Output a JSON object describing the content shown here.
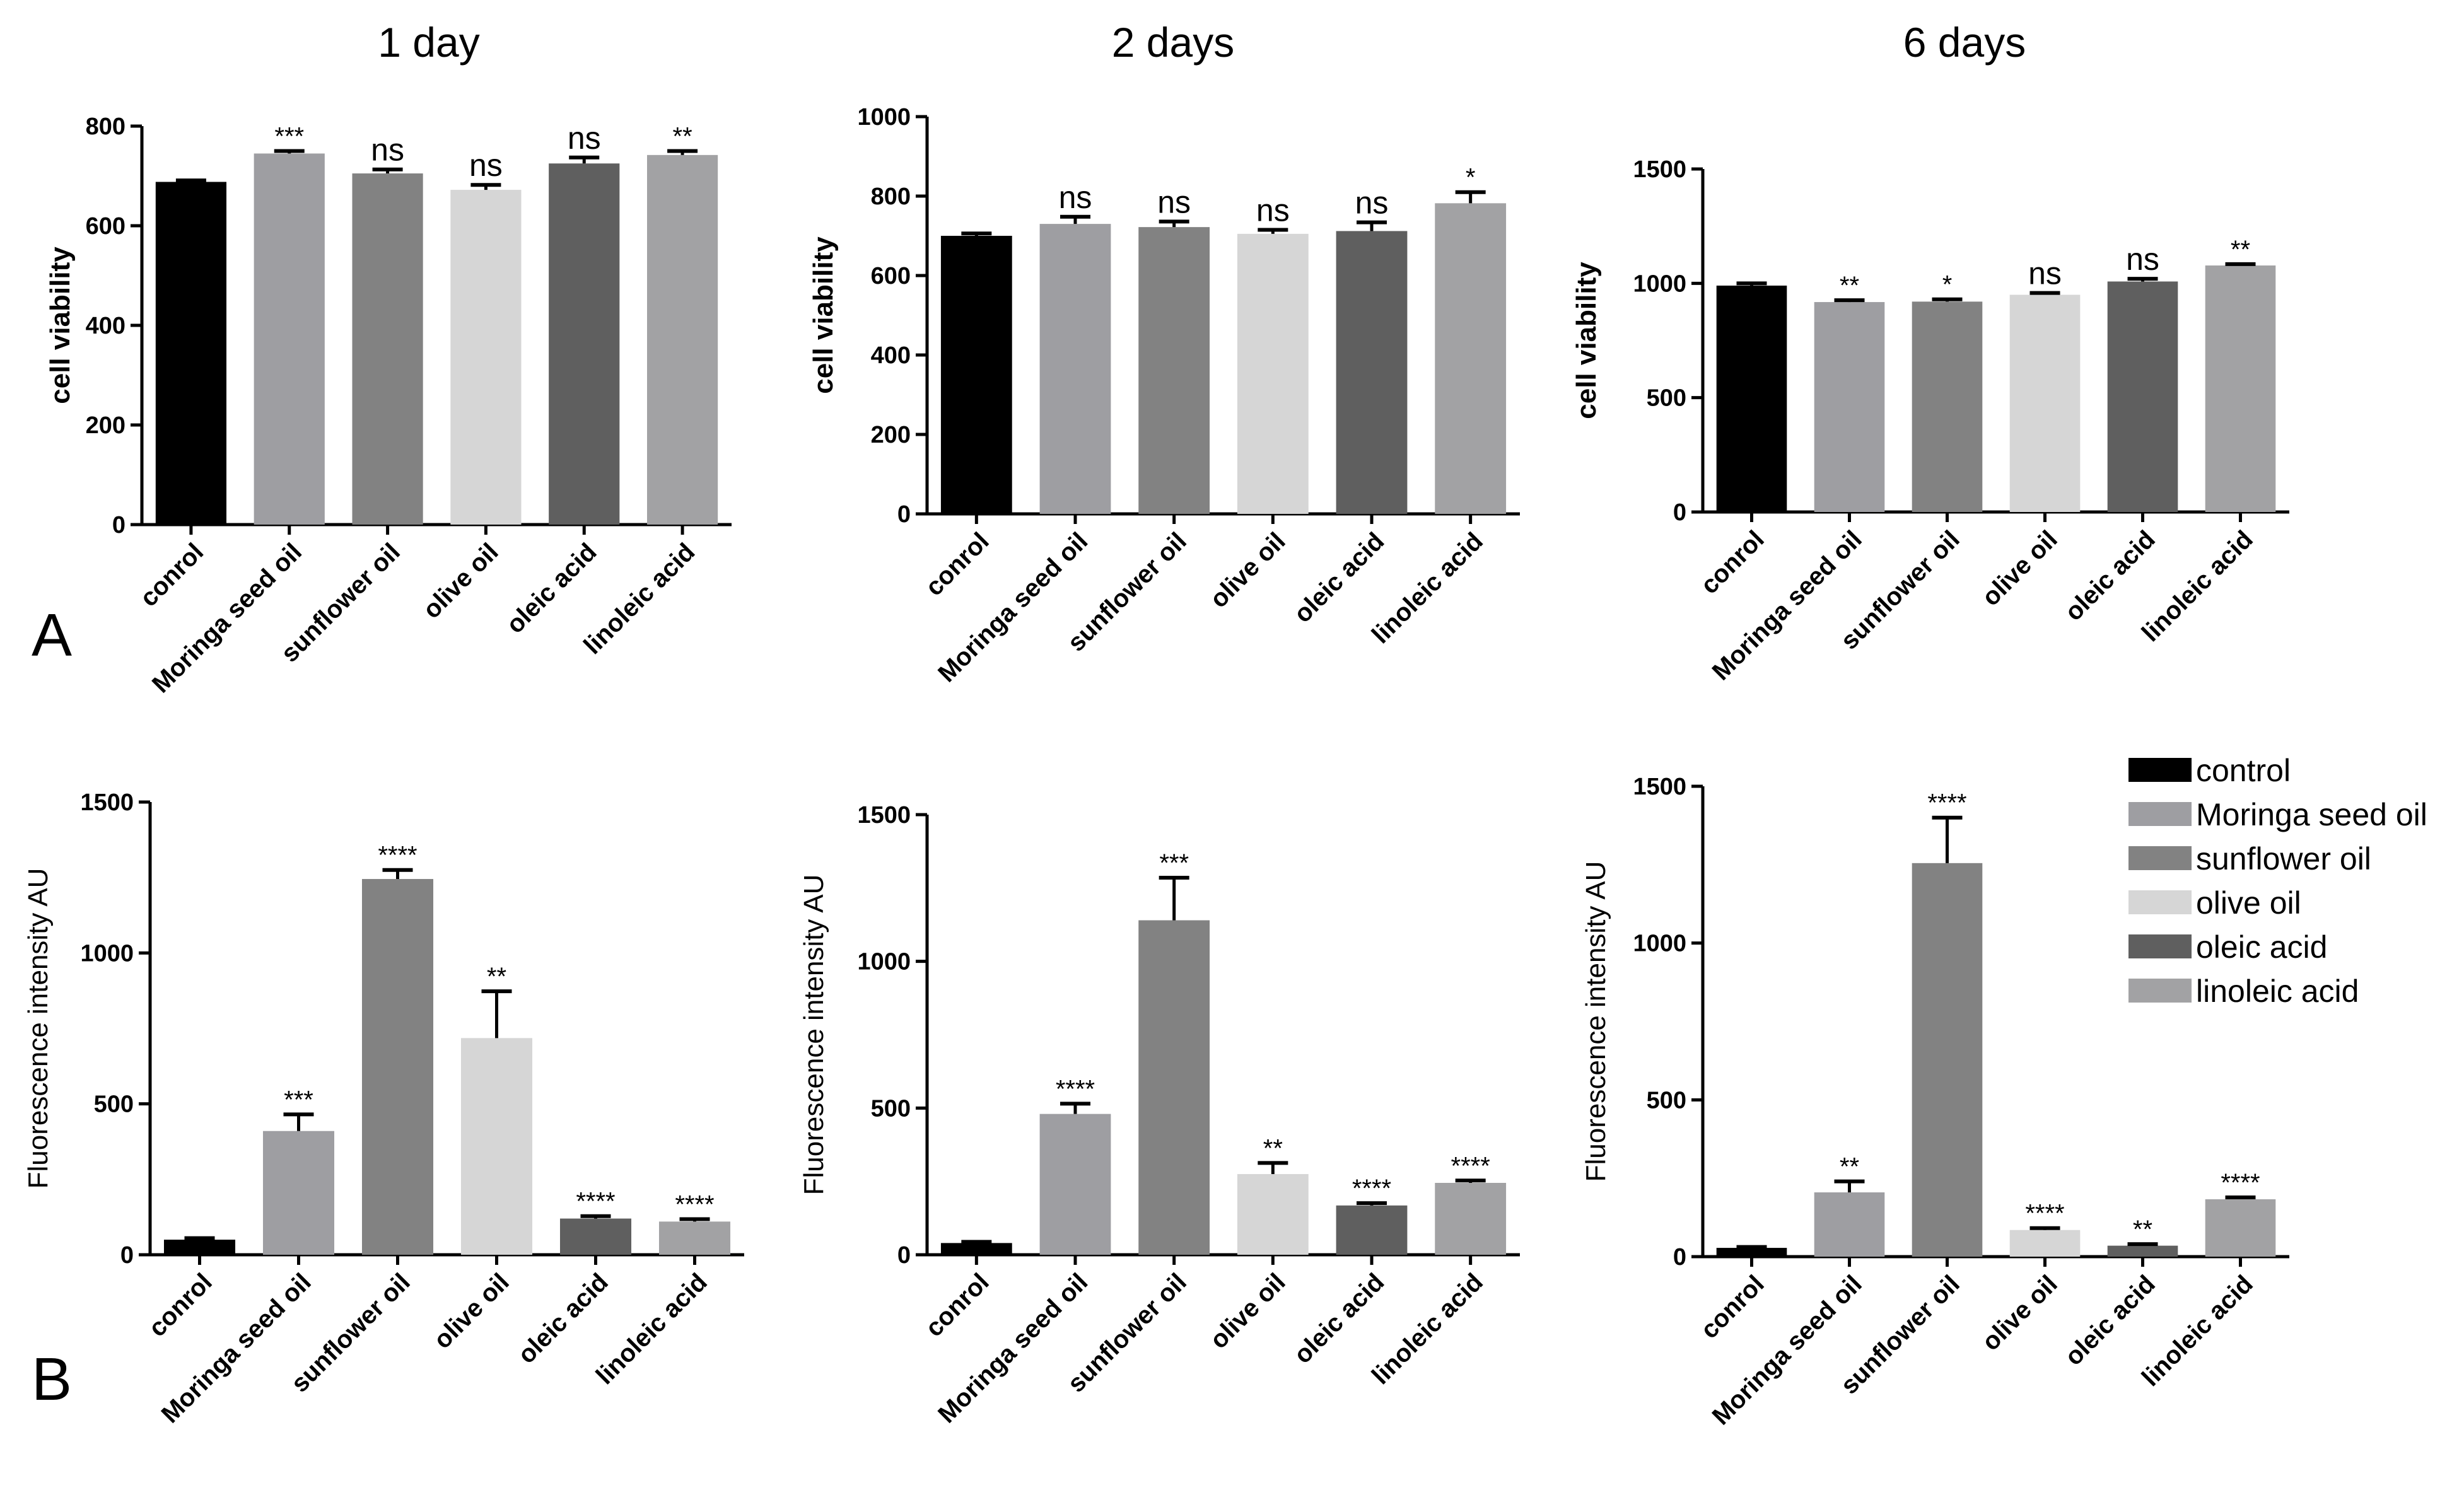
{
  "panel_letters": {
    "a": "A",
    "b": "B"
  },
  "palette": {
    "control": "#000000",
    "Moringa seed oil": "#9e9ea2",
    "sunflower oil": "#828282",
    "olive oil": "#d6d6d6",
    "oleic acid": "#5f5f5f",
    "linoleic acid": "#a2a2a4"
  },
  "legend": {
    "items": [
      "control",
      "Moringa seed oil",
      "sunflower oil",
      "olive oil",
      "oleic acid",
      "linoleic acid"
    ]
  },
  "chart_data": [
    {
      "id": "a1",
      "type": "bar",
      "title": "1 day",
      "ylabel": "cell viability",
      "ylim": [
        0,
        800
      ],
      "yticks": [
        0,
        200,
        400,
        600,
        800
      ],
      "categories": [
        "conrol",
        "Moringa seed oil",
        "sunflower oil",
        "olive oil",
        "oleic acid",
        "linoleic acid"
      ],
      "values": [
        688,
        745,
        705,
        672,
        725,
        742
      ],
      "errors": [
        3,
        5,
        8,
        10,
        12,
        8
      ],
      "significance": [
        "",
        "***",
        "ns",
        "ns",
        "ns",
        "**"
      ]
    },
    {
      "id": "a2",
      "type": "bar",
      "title": "2 days",
      "ylabel": "cell viability",
      "ylim": [
        0,
        1000
      ],
      "yticks": [
        0,
        200,
        400,
        600,
        800,
        1000
      ],
      "categories": [
        "conrol",
        "Moringa seed oil",
        "sunflower oil",
        "olive oil",
        "oleic acid",
        "linoleic acid"
      ],
      "values": [
        700,
        730,
        722,
        705,
        712,
        782
      ],
      "errors": [
        6,
        18,
        14,
        10,
        22,
        28
      ],
      "significance": [
        "",
        "ns",
        "ns",
        "ns",
        "ns",
        "*"
      ]
    },
    {
      "id": "a3",
      "type": "bar",
      "title": "6 days",
      "ylabel": "cell viability",
      "ylim": [
        0,
        1500
      ],
      "yticks": [
        0,
        500,
        1000,
        1500
      ],
      "categories": [
        "conrol",
        "Moringa seed oil",
        "sunflower oil",
        "olive oil",
        "oleic acid",
        "linoleic acid"
      ],
      "values": [
        990,
        918,
        920,
        950,
        1008,
        1078
      ],
      "errors": [
        10,
        8,
        10,
        8,
        12,
        6
      ],
      "significance": [
        "",
        "**",
        "*",
        "ns",
        "ns",
        "**"
      ]
    },
    {
      "id": "b1",
      "type": "bar",
      "title": "",
      "ylabel": "Fluorescence intensity AU",
      "ylim": [
        0,
        1500
      ],
      "yticks": [
        0,
        500,
        1000,
        1500
      ],
      "categories": [
        "conrol",
        "Moringa seed oil",
        "sunflower oil",
        "olive oil",
        "oleic acid",
        "linoleic acid"
      ],
      "values": [
        50,
        410,
        1245,
        718,
        120,
        110
      ],
      "errors": [
        5,
        55,
        30,
        155,
        8,
        8
      ],
      "significance": [
        "",
        "***",
        "****",
        "**",
        "****",
        "****"
      ]
    },
    {
      "id": "b2",
      "type": "bar",
      "title": "",
      "ylabel": "Fluorescence intensity AU",
      "ylim": [
        0,
        1500
      ],
      "yticks": [
        0,
        500,
        1000,
        1500
      ],
      "categories": [
        "conrol",
        "Moringa seed oil",
        "sunflower oil",
        "olive oil",
        "oleic acid",
        "linoleic acid"
      ],
      "values": [
        40,
        480,
        1140,
        275,
        168,
        245
      ],
      "errors": [
        4,
        35,
        145,
        38,
        8,
        8
      ],
      "significance": [
        "",
        "****",
        "***",
        "**",
        "****",
        "****"
      ]
    },
    {
      "id": "b3",
      "type": "bar",
      "title": "",
      "ylabel": "Fluorescence intensity AU",
      "ylim": [
        0,
        1500
      ],
      "yticks": [
        0,
        500,
        1000,
        1500
      ],
      "categories": [
        "conrol",
        "Moringa seed oil",
        "sunflower oil",
        "olive oil",
        "oleic acid",
        "linoleic acid"
      ],
      "values": [
        28,
        205,
        1255,
        85,
        35,
        183
      ],
      "errors": [
        3,
        35,
        145,
        6,
        5,
        6
      ],
      "significance": [
        "",
        "**",
        "****",
        "****",
        "**",
        "****"
      ]
    }
  ]
}
